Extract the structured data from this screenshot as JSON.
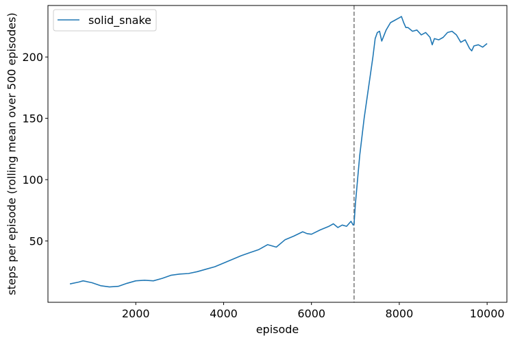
{
  "chart_data": {
    "type": "line",
    "xlabel": "episode",
    "ylabel": "steps per episode (rolling mean over 500 episodes)",
    "xlim": [
      0,
      10450
    ],
    "ylim": [
      0,
      242
    ],
    "xticks": [
      2000,
      4000,
      6000,
      8000,
      10000
    ],
    "xtick_labels": [
      "2000",
      "4000",
      "6000",
      "8000",
      "10000"
    ],
    "yticks": [
      50,
      100,
      150,
      200
    ],
    "ytick_labels": [
      "50",
      "100",
      "150",
      "200"
    ],
    "grid": false,
    "legend_position": "top-left",
    "vline": {
      "x": 6970,
      "style": "dashed",
      "color": "#808080"
    },
    "series": [
      {
        "name": "solid_snake",
        "color": "#1f77b4",
        "x": [
          500,
          700,
          800,
          1000,
          1200,
          1400,
          1600,
          1800,
          2000,
          2200,
          2400,
          2600,
          2800,
          3000,
          3200,
          3400,
          3600,
          3800,
          4000,
          4200,
          4400,
          4600,
          4800,
          5000,
          5200,
          5400,
          5600,
          5800,
          5900,
          6000,
          6200,
          6400,
          6500,
          6600,
          6700,
          6800,
          6900,
          6950,
          6970,
          7000,
          7100,
          7200,
          7300,
          7400,
          7450,
          7500,
          7550,
          7600,
          7700,
          7800,
          7900,
          8000,
          8050,
          8100,
          8150,
          8200,
          8300,
          8400,
          8500,
          8600,
          8700,
          8750,
          8800,
          8900,
          9000,
          9100,
          9200,
          9300,
          9400,
          9500,
          9600,
          9650,
          9700,
          9800,
          9900,
          10000
        ],
        "values": [
          15,
          16.5,
          17.5,
          16,
          13.5,
          12.5,
          13,
          15.5,
          17.5,
          18,
          17.5,
          19.5,
          22,
          23,
          23.5,
          25,
          27,
          29,
          32,
          35,
          38,
          40.5,
          43,
          47,
          45,
          51,
          54,
          57.5,
          56,
          55.5,
          59,
          62,
          64,
          61,
          63,
          62,
          66,
          63,
          64,
          80,
          120,
          150,
          175,
          200,
          215,
          220,
          221,
          213,
          222,
          228,
          230,
          232,
          233,
          228,
          224,
          224,
          221,
          222,
          218,
          220,
          216,
          210,
          215,
          214,
          216,
          220,
          221,
          218,
          212,
          214,
          207,
          205,
          209,
          210,
          208,
          211
        ]
      }
    ]
  }
}
